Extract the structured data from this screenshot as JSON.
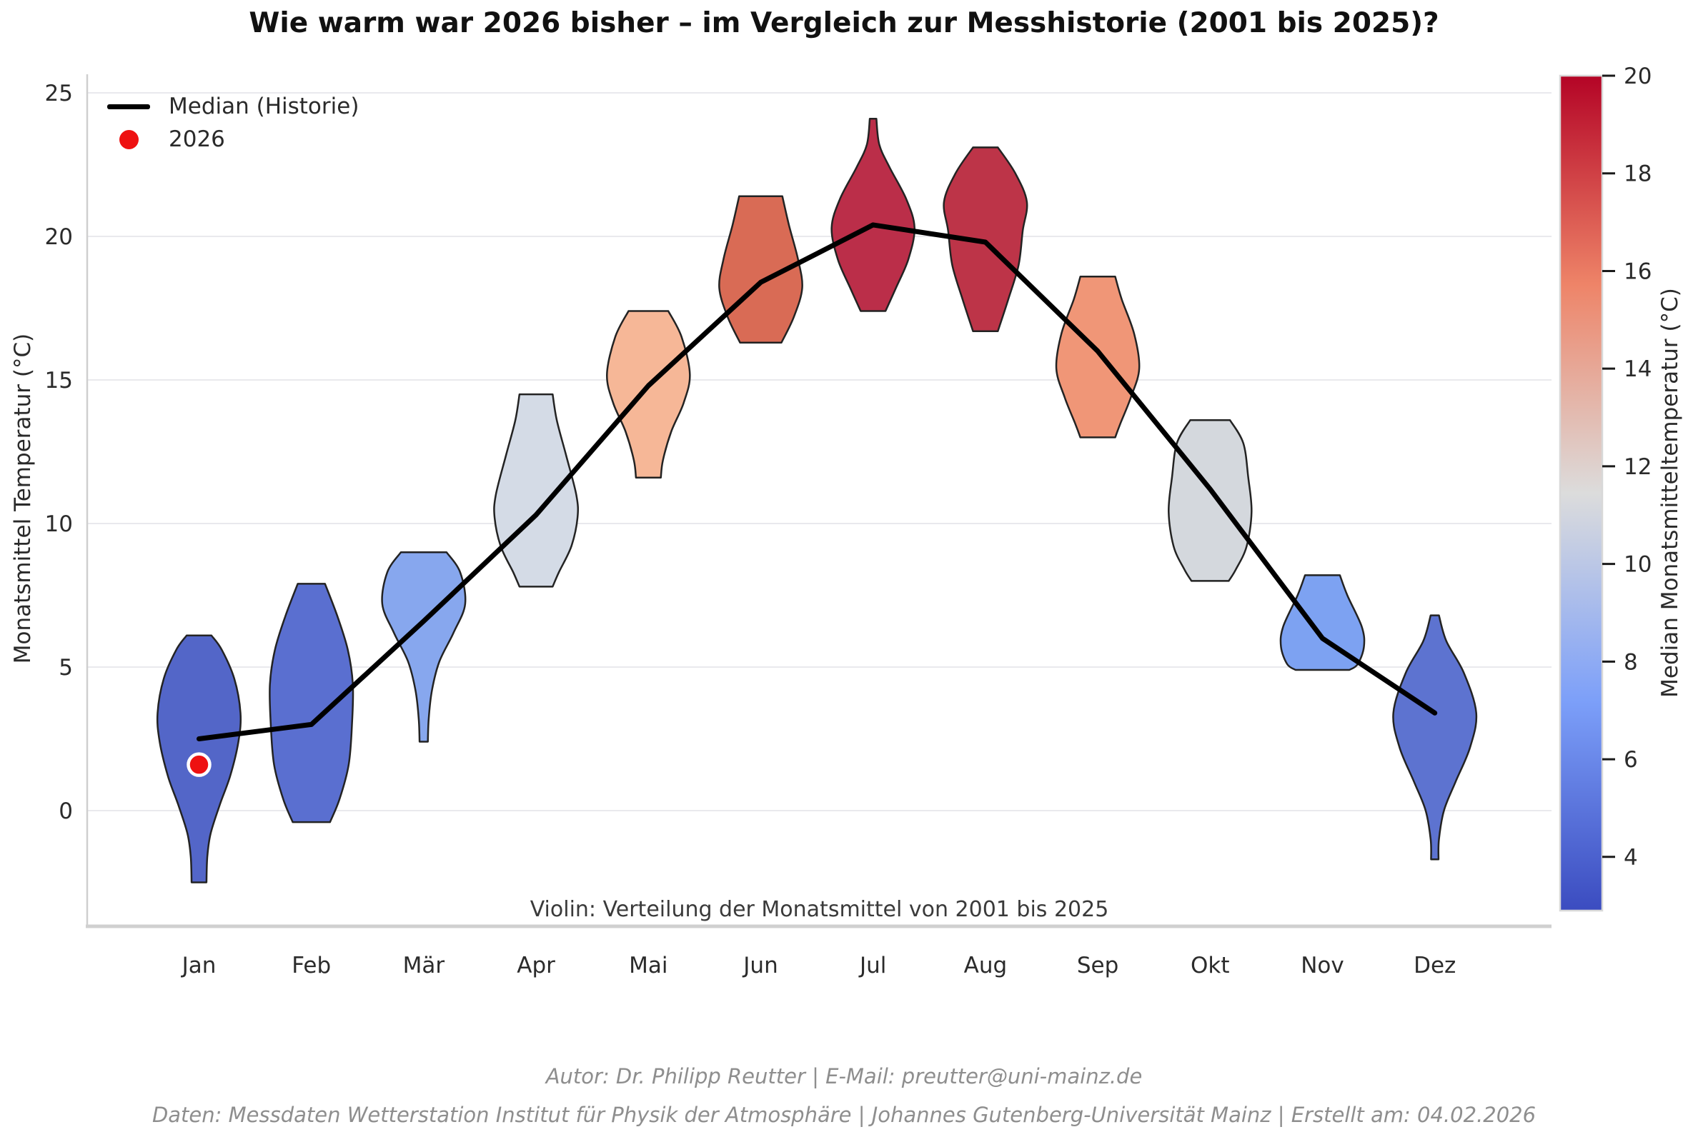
{
  "title": "Wie warm war 2026 bisher – im Vergleich zur Messhistorie (2001 bis 2025)?",
  "legend": {
    "median_label": "Median (Historie)",
    "year_label": "2026",
    "median_color": "#000000",
    "year_color": "#ee1111"
  },
  "axes": {
    "y_label": "Monatsmittel Temperatur (°C)",
    "y_ticks": [
      25,
      20,
      15,
      10,
      5,
      0
    ],
    "x_labels": [
      "Jan",
      "Feb",
      "Mär",
      "Apr",
      "Mai",
      "Jun",
      "Jul",
      "Aug",
      "Sep",
      "Okt",
      "Nov",
      "Dez"
    ]
  },
  "annotation": "Violin: Verteilung der Monatsmittel von 2001 bis 2025",
  "colorbar": {
    "label": "Median Monatsmitteltemperatur (°C)",
    "ticks": [
      20,
      18,
      16,
      14,
      12,
      10,
      8,
      6,
      4
    ],
    "vmin": 2.9,
    "vmax": 20.0,
    "gradient": [
      [
        "0.00",
        "#3b4cc0"
      ],
      [
        "0.25",
        "#7c9ff9"
      ],
      [
        "0.50",
        "#dcdcdc"
      ],
      [
        "0.75",
        "#ee8468"
      ],
      [
        "1.00",
        "#b40426"
      ]
    ],
    "border_color": "#d8d8d8"
  },
  "footer": {
    "line1": "Autor: Dr. Philipp Reutter  |  E-Mail: preutter@uni-mainz.de",
    "line2": "Daten: Messdaten Wetterstation Institut für Physik der Atmosphäre  |  Johannes Gutenberg-Universität Mainz  |  Erstellt am: 04.02.2026"
  },
  "chart_data": {
    "type": "violin",
    "title": "Wie warm war 2026 bisher – im Vergleich zur Messhistorie (2001 bis 2025)?",
    "ylabel": "Monatsmittel Temperatur (°C)",
    "ylim": [
      -4.0,
      26.5
    ],
    "grid": "horizontal",
    "legend_position": "upper-left",
    "categories": [
      "Jan",
      "Feb",
      "Mär",
      "Apr",
      "Mai",
      "Jun",
      "Jul",
      "Aug",
      "Sep",
      "Okt",
      "Nov",
      "Dez"
    ],
    "median_history": [
      2.5,
      3.0,
      6.6,
      10.3,
      14.8,
      18.4,
      20.4,
      19.8,
      16.0,
      11.2,
      6.0,
      3.4
    ],
    "observed_2026": [
      {
        "month": "Jan",
        "value": 1.6
      }
    ],
    "violins": [
      {
        "month": "Jan",
        "min": -2.5,
        "max": 6.1,
        "median": 2.5,
        "color": "#5366c8",
        "profile": [
          [
            6.1,
            0.3
          ],
          [
            5.6,
            0.55
          ],
          [
            4.6,
            0.85
          ],
          [
            3.4,
            1.0
          ],
          [
            2.4,
            0.95
          ],
          [
            1.2,
            0.75
          ],
          [
            0.2,
            0.5
          ],
          [
            -0.8,
            0.28
          ],
          [
            -1.6,
            0.2
          ],
          [
            -2.5,
            0.18
          ]
        ]
      },
      {
        "month": "Feb",
        "min": -0.4,
        "max": 7.9,
        "median": 3.0,
        "color": "#5a6fd0",
        "profile": [
          [
            7.9,
            0.33
          ],
          [
            6.8,
            0.62
          ],
          [
            5.6,
            0.88
          ],
          [
            4.4,
            1.0
          ],
          [
            3.0,
            0.98
          ],
          [
            1.6,
            0.9
          ],
          [
            0.4,
            0.68
          ],
          [
            -0.4,
            0.45
          ]
        ]
      },
      {
        "month": "Mär",
        "min": 2.4,
        "max": 9.0,
        "median": 6.6,
        "color": "#87a7ee",
        "profile": [
          [
            9.0,
            0.55
          ],
          [
            8.3,
            0.88
          ],
          [
            7.2,
            1.0
          ],
          [
            6.2,
            0.72
          ],
          [
            5.2,
            0.38
          ],
          [
            4.2,
            0.2
          ],
          [
            3.2,
            0.12
          ],
          [
            2.4,
            0.1
          ]
        ]
      },
      {
        "month": "Apr",
        "min": 7.8,
        "max": 14.5,
        "median": 10.3,
        "color": "#d4dbe6",
        "profile": [
          [
            14.5,
            0.4
          ],
          [
            13.6,
            0.5
          ],
          [
            12.4,
            0.72
          ],
          [
            11.0,
            0.97
          ],
          [
            10.2,
            1.0
          ],
          [
            9.2,
            0.85
          ],
          [
            8.3,
            0.55
          ],
          [
            7.8,
            0.4
          ]
        ]
      },
      {
        "month": "Mai",
        "min": 11.6,
        "max": 17.4,
        "median": 14.8,
        "color": "#f6b797",
        "profile": [
          [
            17.4,
            0.48
          ],
          [
            16.5,
            0.8
          ],
          [
            15.2,
            1.0
          ],
          [
            14.2,
            0.85
          ],
          [
            13.2,
            0.55
          ],
          [
            12.2,
            0.35
          ],
          [
            11.6,
            0.3
          ]
        ]
      },
      {
        "month": "Jun",
        "min": 16.3,
        "max": 21.4,
        "median": 18.4,
        "color": "#d96b55",
        "profile": [
          [
            21.4,
            0.52
          ],
          [
            20.4,
            0.68
          ],
          [
            19.2,
            0.9
          ],
          [
            18.2,
            1.0
          ],
          [
            17.2,
            0.8
          ],
          [
            16.3,
            0.5
          ]
        ]
      },
      {
        "month": "Jul",
        "min": 17.4,
        "max": 24.1,
        "median": 20.4,
        "color": "#bb2e49",
        "profile": [
          [
            24.1,
            0.08
          ],
          [
            23.2,
            0.15
          ],
          [
            22.4,
            0.4
          ],
          [
            21.3,
            0.8
          ],
          [
            20.3,
            1.0
          ],
          [
            19.2,
            0.85
          ],
          [
            18.2,
            0.55
          ],
          [
            17.4,
            0.3
          ]
        ]
      },
      {
        "month": "Aug",
        "min": 16.7,
        "max": 23.1,
        "median": 19.8,
        "color": "#bd3448",
        "profile": [
          [
            23.1,
            0.3
          ],
          [
            22.2,
            0.72
          ],
          [
            21.2,
            1.0
          ],
          [
            20.2,
            0.9
          ],
          [
            19.0,
            0.8
          ],
          [
            17.8,
            0.55
          ],
          [
            16.7,
            0.3
          ]
        ]
      },
      {
        "month": "Sep",
        "min": 13.0,
        "max": 18.6,
        "median": 16.0,
        "color": "#f09677",
        "profile": [
          [
            18.6,
            0.42
          ],
          [
            17.8,
            0.58
          ],
          [
            16.6,
            0.88
          ],
          [
            15.4,
            1.0
          ],
          [
            14.4,
            0.8
          ],
          [
            13.5,
            0.55
          ],
          [
            13.0,
            0.42
          ]
        ]
      },
      {
        "month": "Okt",
        "min": 8.0,
        "max": 13.6,
        "median": 11.2,
        "color": "#d4d8dd",
        "profile": [
          [
            13.6,
            0.48
          ],
          [
            12.8,
            0.8
          ],
          [
            11.6,
            0.92
          ],
          [
            10.4,
            1.0
          ],
          [
            9.2,
            0.88
          ],
          [
            8.4,
            0.62
          ],
          [
            8.0,
            0.45
          ]
        ]
      },
      {
        "month": "Nov",
        "min": 4.9,
        "max": 8.2,
        "median": 6.0,
        "color": "#7da2f2",
        "profile": [
          [
            8.2,
            0.42
          ],
          [
            7.5,
            0.6
          ],
          [
            6.4,
            0.95
          ],
          [
            5.7,
            1.0
          ],
          [
            5.1,
            0.85
          ],
          [
            4.9,
            0.65
          ]
        ]
      },
      {
        "month": "Dez",
        "min": -1.7,
        "max": 6.8,
        "median": 3.4,
        "color": "#5d73d0",
        "profile": [
          [
            6.8,
            0.1
          ],
          [
            5.9,
            0.28
          ],
          [
            4.8,
            0.7
          ],
          [
            3.4,
            1.0
          ],
          [
            2.2,
            0.85
          ],
          [
            1.0,
            0.5
          ],
          [
            0.0,
            0.22
          ],
          [
            -1.0,
            0.1
          ],
          [
            -1.7,
            0.09
          ]
        ]
      }
    ]
  }
}
